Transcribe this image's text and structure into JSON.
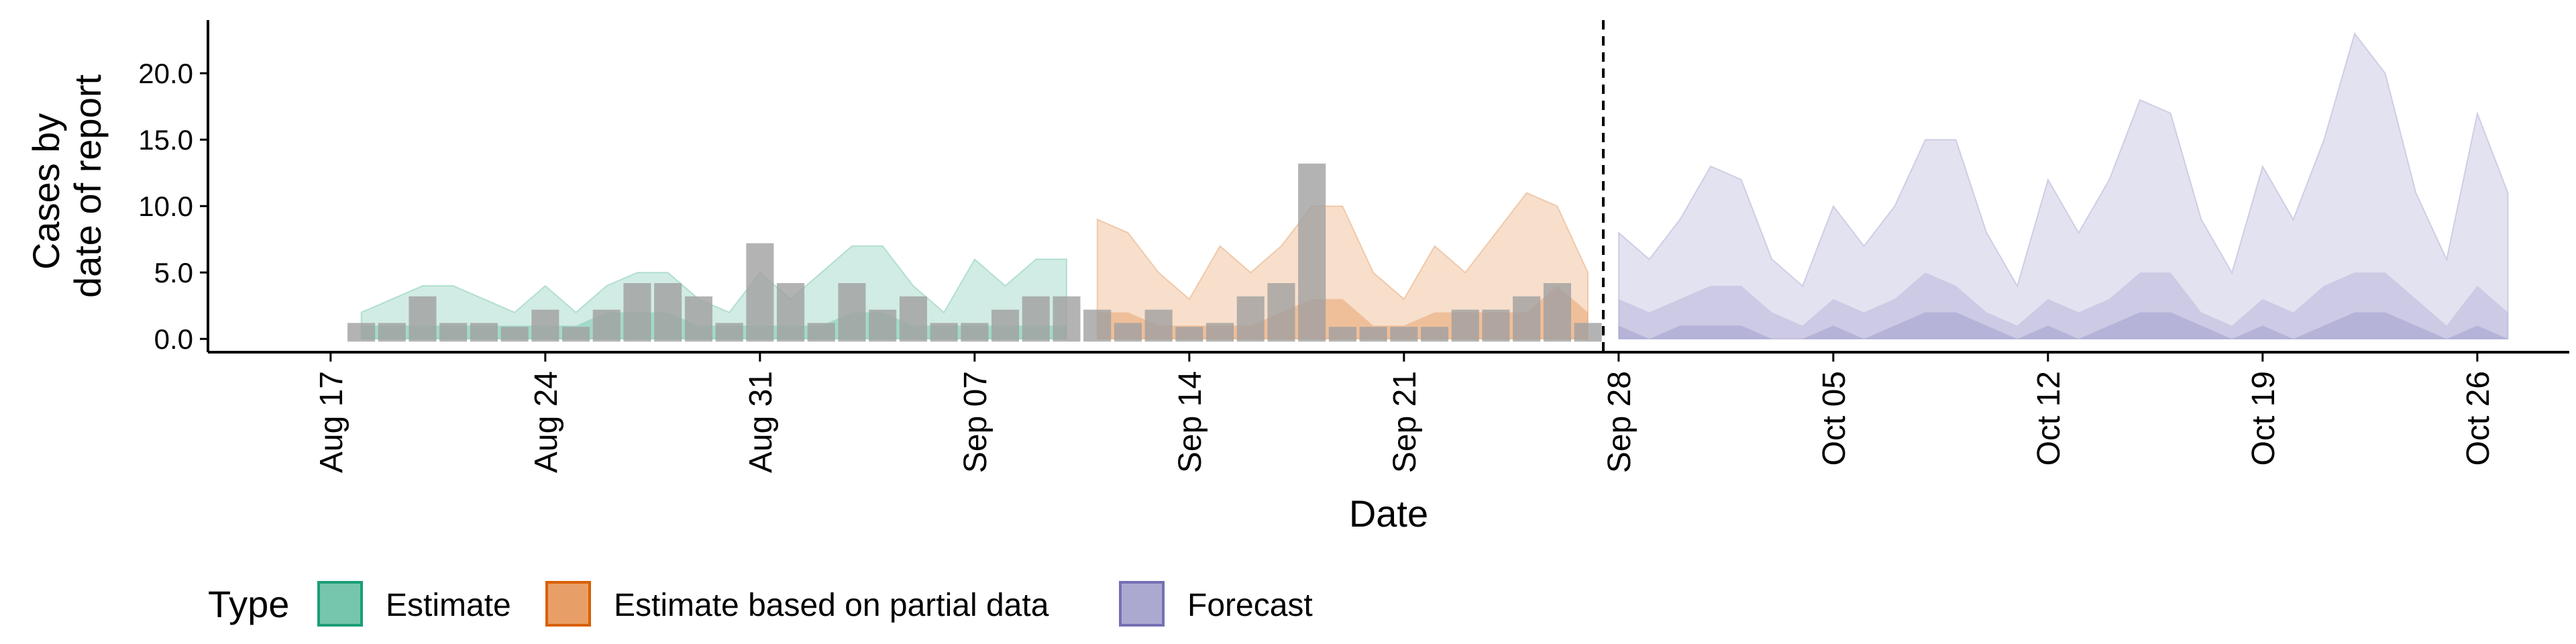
{
  "chart_data": {
    "type": "area",
    "xlabel": "Date",
    "ylabel_lines": [
      "Cases by",
      "date of report"
    ],
    "x_start_date": "2020-08-18",
    "x_tick_labels": [
      "Aug 17",
      "Aug 24",
      "Aug 31",
      "Sep 07",
      "Sep 14",
      "Sep 21",
      "Sep 28",
      "Oct 05",
      "Oct 12",
      "Oct 19",
      "Oct 26"
    ],
    "x_tick_dates": [
      "2020-08-17",
      "2020-08-24",
      "2020-08-31",
      "2020-09-07",
      "2020-09-14",
      "2020-09-21",
      "2020-09-28",
      "2020-10-05",
      "2020-10-12",
      "2020-10-19",
      "2020-10-26"
    ],
    "xlim": [
      "2020-08-13",
      "2020-10-29"
    ],
    "ylim": [
      -1,
      24
    ],
    "y_ticks": [
      0,
      5,
      10,
      15,
      20
    ],
    "y_tick_labels": [
      "0.0",
      "5.0",
      "10.0",
      "15.0",
      "20.0"
    ],
    "forecast_start_line": "2020-09-27",
    "legend": {
      "title": "Type",
      "placement": "bottom",
      "entries": [
        "Estimate",
        "Estimate based on partial data",
        "Forecast"
      ]
    },
    "colors": {
      "Estimate": "#1b9e77",
      "Estimate based on partial data": "#d95f02",
      "Forecast": "#7570b3",
      "bars": "#a0a0a0"
    },
    "reported_cases": {
      "x": [
        "2020-08-18",
        "2020-08-19",
        "2020-08-20",
        "2020-08-21",
        "2020-08-22",
        "2020-08-23",
        "2020-08-24",
        "2020-08-25",
        "2020-08-26",
        "2020-08-27",
        "2020-08-28",
        "2020-08-29",
        "2020-08-30",
        "2020-08-31",
        "2020-09-01",
        "2020-09-02",
        "2020-09-03",
        "2020-09-04",
        "2020-09-05",
        "2020-09-06",
        "2020-09-07",
        "2020-09-08",
        "2020-09-09",
        "2020-09-10",
        "2020-09-11",
        "2020-09-12",
        "2020-09-13",
        "2020-09-14",
        "2020-09-15",
        "2020-09-16",
        "2020-09-17",
        "2020-09-18",
        "2020-09-19",
        "2020-09-20",
        "2020-09-21",
        "2020-09-22",
        "2020-09-23",
        "2020-09-24",
        "2020-09-25",
        "2020-09-26",
        "2020-09-27"
      ],
      "values": [
        1,
        1,
        3,
        1,
        1,
        0,
        2,
        0,
        2,
        4,
        4,
        3,
        1,
        7,
        4,
        1,
        4,
        2,
        3,
        1,
        1,
        2,
        3,
        3,
        2,
        1,
        2,
        0,
        1,
        3,
        4,
        13,
        0,
        0,
        0,
        0,
        2,
        2,
        3,
        4,
        1
      ]
    },
    "series": [
      {
        "name": "Estimate",
        "x": [
          "2020-08-18",
          "2020-08-19",
          "2020-08-20",
          "2020-08-21",
          "2020-08-22",
          "2020-08-23",
          "2020-08-24",
          "2020-08-25",
          "2020-08-26",
          "2020-08-27",
          "2020-08-28",
          "2020-08-29",
          "2020-08-30",
          "2020-08-31",
          "2020-09-01",
          "2020-09-02",
          "2020-09-03",
          "2020-09-04",
          "2020-09-05",
          "2020-09-06",
          "2020-09-07",
          "2020-09-08",
          "2020-09-09",
          "2020-09-10"
        ],
        "outer_lower": [
          0,
          0,
          0,
          0,
          0,
          0,
          0,
          0,
          0,
          0,
          0,
          0,
          0,
          0,
          0,
          0,
          0,
          0,
          0,
          0,
          0,
          0,
          0,
          0
        ],
        "outer_upper": [
          2,
          3,
          4,
          4,
          3,
          2,
          4,
          2,
          4,
          5,
          5,
          3,
          2,
          5,
          3,
          5,
          7,
          7,
          4,
          2,
          6,
          4,
          6,
          6
        ],
        "inner_lower": [
          0,
          0,
          0,
          0,
          0,
          0,
          0,
          0,
          0,
          0,
          0,
          0,
          0,
          0,
          0,
          0,
          0,
          0,
          0,
          0,
          0,
          0,
          0,
          0
        ],
        "inner_upper": [
          1,
          1,
          1,
          1,
          1,
          1,
          1,
          1,
          2,
          2,
          2,
          1,
          1,
          1,
          1,
          1,
          2,
          2,
          1,
          1,
          1,
          1,
          1,
          1
        ]
      },
      {
        "name": "Estimate based on partial data",
        "x": [
          "2020-09-11",
          "2020-09-12",
          "2020-09-13",
          "2020-09-14",
          "2020-09-15",
          "2020-09-16",
          "2020-09-17",
          "2020-09-18",
          "2020-09-19",
          "2020-09-20",
          "2020-09-21",
          "2020-09-22",
          "2020-09-23",
          "2020-09-24",
          "2020-09-25",
          "2020-09-26",
          "2020-09-27"
        ],
        "outer_lower": [
          0,
          0,
          0,
          0,
          0,
          0,
          0,
          0,
          0,
          0,
          0,
          0,
          0,
          0,
          0,
          0,
          0
        ],
        "outer_upper": [
          9,
          8,
          5,
          3,
          7,
          5,
          7,
          10,
          10,
          5,
          3,
          7,
          5,
          8,
          11,
          10,
          5
        ],
        "inner_lower": [
          0,
          0,
          0,
          0,
          0,
          0,
          0,
          0,
          0,
          0,
          0,
          0,
          0,
          0,
          0,
          0,
          0
        ],
        "inner_upper": [
          2,
          2,
          1,
          1,
          1,
          1,
          2,
          3,
          3,
          1,
          1,
          2,
          2,
          2,
          2,
          4,
          2
        ]
      },
      {
        "name": "Forecast",
        "x": [
          "2020-09-28",
          "2020-09-29",
          "2020-09-30",
          "2020-10-01",
          "2020-10-02",
          "2020-10-03",
          "2020-10-04",
          "2020-10-05",
          "2020-10-06",
          "2020-10-07",
          "2020-10-08",
          "2020-10-09",
          "2020-10-10",
          "2020-10-11",
          "2020-10-12",
          "2020-10-13",
          "2020-10-14",
          "2020-10-15",
          "2020-10-16",
          "2020-10-17",
          "2020-10-18",
          "2020-10-19",
          "2020-10-20",
          "2020-10-21",
          "2020-10-22",
          "2020-10-23",
          "2020-10-24",
          "2020-10-25",
          "2020-10-26",
          "2020-10-27"
        ],
        "outer_lower": [
          0,
          0,
          0,
          0,
          0,
          0,
          0,
          0,
          0,
          0,
          0,
          0,
          0,
          0,
          0,
          0,
          0,
          0,
          0,
          0,
          0,
          0,
          0,
          0,
          0,
          0,
          0,
          0,
          0,
          0
        ],
        "outer_upper": [
          8,
          6,
          9,
          13,
          12,
          6,
          4,
          10,
          7,
          10,
          15,
          15,
          8,
          4,
          12,
          8,
          12,
          18,
          17,
          9,
          5,
          13,
          9,
          15,
          23,
          20,
          11,
          6,
          17,
          11
        ],
        "mid_upper": [
          3,
          2,
          3,
          4,
          4,
          2,
          1,
          3,
          2,
          3,
          5,
          4,
          2,
          1,
          3,
          2,
          3,
          5,
          5,
          2,
          1,
          3,
          2,
          4,
          5,
          5,
          3,
          1,
          4,
          2
        ],
        "inner_upper": [
          1,
          0,
          1,
          1,
          1,
          0,
          0,
          1,
          0,
          1,
          2,
          2,
          1,
          0,
          1,
          0,
          1,
          2,
          2,
          1,
          0,
          1,
          0,
          1,
          2,
          2,
          1,
          0,
          1,
          0
        ]
      }
    ]
  }
}
